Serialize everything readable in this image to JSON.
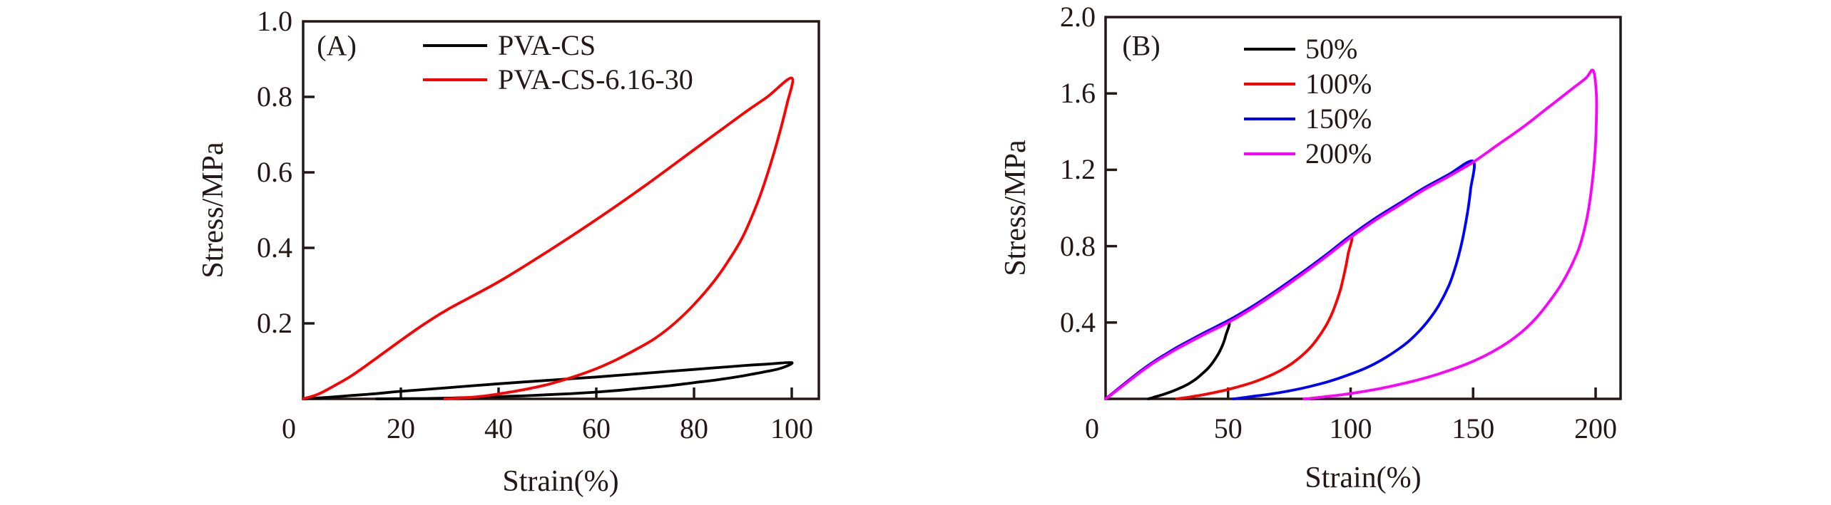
{
  "figure": {
    "background": "#ffffff",
    "ink_color": "#231815"
  },
  "chart_data": [
    {
      "id": "A",
      "type": "line",
      "panel_label": "(A)",
      "xlabel": "Strain(%)",
      "ylabel": "Stress/MPa",
      "xlim": [
        0,
        105.5
      ],
      "ylim": [
        0,
        1.0
      ],
      "xticks": [
        20,
        40,
        60,
        80,
        100
      ],
      "xtick_labels": [
        "20",
        "40",
        "60",
        "80",
        "100"
      ],
      "yticks": [
        0.2,
        0.4,
        0.6,
        0.8,
        1.0
      ],
      "ytick_labels": [
        "0.2",
        "0.4",
        "0.6",
        "0.8",
        "1.0"
      ],
      "origin_label": "0",
      "grid": false,
      "legend_position": "top-left-inside",
      "legend": [
        {
          "label": "PVA-CS",
          "color": "#000000"
        },
        {
          "label": "PVA-CS-6.16-30",
          "color": "#ff0000"
        }
      ],
      "series": [
        {
          "name": "PVA-CS",
          "color": "#000000",
          "points": [
            [
              0,
              0
            ],
            [
              5,
              0.004
            ],
            [
              10,
              0.009
            ],
            [
              15,
              0.014
            ],
            [
              20,
              0.02
            ],
            [
              30,
              0.03
            ],
            [
              40,
              0.04
            ],
            [
              50,
              0.049
            ],
            [
              60,
              0.058
            ],
            [
              70,
              0.068
            ],
            [
              80,
              0.078
            ],
            [
              90,
              0.088
            ],
            [
              95,
              0.092
            ],
            [
              100,
              0.096
            ],
            [
              98,
              0.082
            ],
            [
              95,
              0.073
            ],
            [
              90,
              0.061
            ],
            [
              85,
              0.051
            ],
            [
              80,
              0.043
            ],
            [
              75,
              0.035
            ],
            [
              70,
              0.029
            ],
            [
              65,
              0.023
            ],
            [
              60,
              0.018
            ],
            [
              55,
              0.014
            ],
            [
              50,
              0.011
            ],
            [
              45,
              0.008
            ],
            [
              40,
              0.006
            ],
            [
              35,
              0.004
            ],
            [
              30,
              0.002
            ],
            [
              25,
              0.001
            ],
            [
              20,
              0.0005
            ],
            [
              15,
              0
            ]
          ]
        },
        {
          "name": "PVA-CS-6.16-30",
          "color": "#ff0000",
          "points": [
            [
              0,
              0
            ],
            [
              3,
              0.012
            ],
            [
              6,
              0.032
            ],
            [
              10,
              0.062
            ],
            [
              15,
              0.108
            ],
            [
              20,
              0.155
            ],
            [
              25,
              0.2
            ],
            [
              30,
              0.24
            ],
            [
              40,
              0.31
            ],
            [
              50,
              0.39
            ],
            [
              60,
              0.475
            ],
            [
              70,
              0.565
            ],
            [
              80,
              0.66
            ],
            [
              90,
              0.755
            ],
            [
              95,
              0.8
            ],
            [
              100,
              0.85
            ],
            [
              99,
              0.78
            ],
            [
              97,
              0.68
            ],
            [
              95,
              0.595
            ],
            [
              93,
              0.52
            ],
            [
              90,
              0.43
            ],
            [
              87,
              0.365
            ],
            [
              84,
              0.31
            ],
            [
              80,
              0.25
            ],
            [
              76,
              0.2
            ],
            [
              72,
              0.16
            ],
            [
              68,
              0.13
            ],
            [
              64,
              0.103
            ],
            [
              60,
              0.08
            ],
            [
              55,
              0.057
            ],
            [
              50,
              0.038
            ],
            [
              45,
              0.024
            ],
            [
              40,
              0.013
            ],
            [
              36,
              0.006
            ],
            [
              32,
              0.002
            ],
            [
              29,
              0
            ]
          ]
        }
      ]
    },
    {
      "id": "B",
      "type": "line",
      "panel_label": "(B)",
      "xlabel": "Strain(%)",
      "ylabel": "Stress/MPa",
      "xlim": [
        0,
        210
      ],
      "ylim": [
        0,
        2.0
      ],
      "xticks": [
        50,
        100,
        150,
        200
      ],
      "xtick_labels": [
        "50",
        "100",
        "150",
        "200"
      ],
      "yticks": [
        0.4,
        0.8,
        1.2,
        1.6,
        2.0
      ],
      "ytick_labels": [
        "0.4",
        "0.8",
        "1.2",
        "1.6",
        "2.0"
      ],
      "origin_label": "0",
      "grid": false,
      "legend_position": "top-center-inside",
      "legend": [
        {
          "label": "50%",
          "color": "#000000"
        },
        {
          "label": "100%",
          "color": "#ff0000"
        },
        {
          "label": "150%",
          "color": "#0000ff"
        },
        {
          "label": "200%",
          "color": "#ff00ff"
        }
      ],
      "series": [
        {
          "name": "50%",
          "color": "#000000",
          "points": [
            [
              0,
              0
            ],
            [
              5,
              0.05
            ],
            [
              10,
              0.1
            ],
            [
              15,
              0.15
            ],
            [
              20,
              0.195
            ],
            [
              25,
              0.235
            ],
            [
              30,
              0.272
            ],
            [
              40,
              0.34
            ],
            [
              50,
              0.405
            ],
            [
              49,
              0.33
            ],
            [
              48,
              0.29
            ],
            [
              47,
              0.26
            ],
            [
              46,
              0.235
            ],
            [
              44,
              0.195
            ],
            [
              42,
              0.163
            ],
            [
              40,
              0.138
            ],
            [
              37,
              0.105
            ],
            [
              34,
              0.08
            ],
            [
              31,
              0.06
            ],
            [
              28,
              0.044
            ],
            [
              26,
              0.034
            ],
            [
              24,
              0.025
            ],
            [
              22,
              0.017
            ],
            [
              20,
              0.01
            ],
            [
              19,
              0.005
            ],
            [
              18,
              0.002
            ],
            [
              17.5,
              0
            ]
          ]
        },
        {
          "name": "100%",
          "color": "#ff0000",
          "points": [
            [
              0,
              0
            ],
            [
              5,
              0.05
            ],
            [
              10,
              0.1
            ],
            [
              15,
              0.15
            ],
            [
              20,
              0.195
            ],
            [
              25,
              0.235
            ],
            [
              30,
              0.272
            ],
            [
              40,
              0.34
            ],
            [
              50,
              0.405
            ],
            [
              60,
              0.48
            ],
            [
              70,
              0.565
            ],
            [
              80,
              0.655
            ],
            [
              90,
              0.75
            ],
            [
              100,
              0.85
            ],
            [
              99,
              0.76
            ],
            [
              98,
              0.69
            ],
            [
              96,
              0.58
            ],
            [
              94,
              0.5
            ],
            [
              92,
              0.435
            ],
            [
              90,
              0.385
            ],
            [
              87,
              0.325
            ],
            [
              84,
              0.275
            ],
            [
              80,
              0.225
            ],
            [
              76,
              0.185
            ],
            [
              72,
              0.153
            ],
            [
              68,
              0.127
            ],
            [
              64,
              0.105
            ],
            [
              60,
              0.086
            ],
            [
              56,
              0.07
            ],
            [
              52,
              0.056
            ],
            [
              48,
              0.043
            ],
            [
              44,
              0.032
            ],
            [
              40,
              0.022
            ],
            [
              36,
              0.013
            ],
            [
              33,
              0.007
            ],
            [
              30,
              0.002
            ],
            [
              29,
              0
            ]
          ]
        },
        {
          "name": "150%",
          "color": "#0000ff",
          "points": [
            [
              0,
              0
            ],
            [
              5,
              0.052
            ],
            [
              10,
              0.103
            ],
            [
              15,
              0.153
            ],
            [
              20,
              0.198
            ],
            [
              25,
              0.238
            ],
            [
              30,
              0.276
            ],
            [
              40,
              0.345
            ],
            [
              50,
              0.41
            ],
            [
              60,
              0.485
            ],
            [
              70,
              0.57
            ],
            [
              80,
              0.66
            ],
            [
              90,
              0.755
            ],
            [
              100,
              0.855
            ],
            [
              110,
              0.945
            ],
            [
              120,
              1.025
            ],
            [
              130,
              1.105
            ],
            [
              140,
              1.175
            ],
            [
              150,
              1.245
            ],
            [
              149,
              1.1
            ],
            [
              148,
              1.0
            ],
            [
              146,
              0.855
            ],
            [
              144,
              0.745
            ],
            [
              142,
              0.66
            ],
            [
              140,
              0.59
            ],
            [
              136,
              0.49
            ],
            [
              132,
              0.415
            ],
            [
              128,
              0.355
            ],
            [
              124,
              0.305
            ],
            [
              120,
              0.265
            ],
            [
              115,
              0.222
            ],
            [
              110,
              0.185
            ],
            [
              105,
              0.155
            ],
            [
              100,
              0.13
            ],
            [
              95,
              0.107
            ],
            [
              90,
              0.087
            ],
            [
              85,
              0.07
            ],
            [
              80,
              0.055
            ],
            [
              75,
              0.042
            ],
            [
              70,
              0.031
            ],
            [
              65,
              0.021
            ],
            [
              60,
              0.013
            ],
            [
              56,
              0.006
            ],
            [
              53,
              0.001
            ],
            [
              52,
              0
            ]
          ]
        },
        {
          "name": "200%",
          "color": "#ff00ff",
          "points": [
            [
              0,
              0
            ],
            [
              5,
              0.048
            ],
            [
              10,
              0.098
            ],
            [
              15,
              0.147
            ],
            [
              20,
              0.192
            ],
            [
              25,
              0.231
            ],
            [
              30,
              0.268
            ],
            [
              40,
              0.336
            ],
            [
              50,
              0.4
            ],
            [
              60,
              0.475
            ],
            [
              70,
              0.56
            ],
            [
              80,
              0.65
            ],
            [
              90,
              0.745
            ],
            [
              100,
              0.845
            ],
            [
              110,
              0.935
            ],
            [
              120,
              1.015
            ],
            [
              130,
              1.095
            ],
            [
              140,
              1.165
            ],
            [
              150,
              1.24
            ],
            [
              160,
              1.33
            ],
            [
              170,
              1.42
            ],
            [
              180,
              1.52
            ],
            [
              190,
              1.62
            ],
            [
              196,
              1.68
            ],
            [
              199,
              1.72
            ],
            [
              200.3,
              1.6
            ],
            [
              200.3,
              1.45
            ],
            [
              199.8,
              1.3
            ],
            [
              198.5,
              1.12
            ],
            [
              196.5,
              0.95
            ],
            [
              193.5,
              0.8
            ],
            [
              190,
              0.695
            ],
            [
              186,
              0.6
            ],
            [
              182,
              0.525
            ],
            [
              178,
              0.458
            ],
            [
              174,
              0.4
            ],
            [
              170,
              0.352
            ],
            [
              165,
              0.303
            ],
            [
              160,
              0.262
            ],
            [
              155,
              0.227
            ],
            [
              150,
              0.197
            ],
            [
              145,
              0.171
            ],
            [
              140,
              0.148
            ],
            [
              135,
              0.127
            ],
            [
              130,
              0.108
            ],
            [
              125,
              0.091
            ],
            [
              120,
              0.076
            ],
            [
              115,
              0.062
            ],
            [
              110,
              0.049
            ],
            [
              105,
              0.038
            ],
            [
              100,
              0.028
            ],
            [
              95,
              0.019
            ],
            [
              90,
              0.012
            ],
            [
              86,
              0.006
            ],
            [
              83,
              0.002
            ],
            [
              81,
              0
            ]
          ]
        }
      ]
    }
  ]
}
